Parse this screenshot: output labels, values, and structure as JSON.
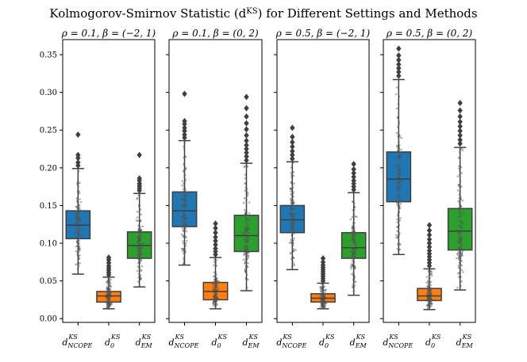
{
  "chart_data": {
    "type": "boxplot",
    "title": "Kolmogorov-Smirnov Statistic (d^KS) for Different Settings and Methods",
    "ylim": [
      -0.005,
      0.37
    ],
    "yticks": [
      0.0,
      0.05,
      0.1,
      0.15,
      0.2,
      0.25,
      0.3,
      0.35
    ],
    "ytick_labels": [
      "0.00",
      "0.05",
      "0.10",
      "0.15",
      "0.20",
      "0.25",
      "0.30",
      "0.35"
    ],
    "categories": [
      {
        "base": "d",
        "sub": "NCOPE",
        "sup": "KS"
      },
      {
        "base": "d",
        "sub": "0",
        "sup": "KS"
      },
      {
        "base": "d",
        "sub": "EM",
        "sup": "KS"
      }
    ],
    "colors": [
      "#1f77b4",
      "#ff7f0e",
      "#2ca02c"
    ],
    "panels": [
      {
        "subtitle": "ρ = 0.1, β = (−2, 1)",
        "boxes": [
          {
            "whisker_low": 0.059,
            "q1": 0.106,
            "median": 0.124,
            "q3": 0.143,
            "whisker_high": 0.199,
            "outliers": [
              0.203,
              0.207,
              0.213,
              0.217,
              0.244
            ]
          },
          {
            "whisker_low": 0.013,
            "q1": 0.022,
            "median": 0.03,
            "q3": 0.036,
            "whisker_high": 0.055,
            "outliers": [
              0.058,
              0.061,
              0.064,
              0.067,
              0.07,
              0.074,
              0.078,
              0.081
            ]
          },
          {
            "whisker_low": 0.042,
            "q1": 0.08,
            "median": 0.097,
            "q3": 0.115,
            "whisker_high": 0.166,
            "outliers": [
              0.17,
              0.173,
              0.176,
              0.179,
              0.183,
              0.186,
              0.217
            ]
          }
        ]
      },
      {
        "subtitle": "ρ = 0.1, β = (0, 2)",
        "boxes": [
          {
            "whisker_low": 0.071,
            "q1": 0.122,
            "median": 0.143,
            "q3": 0.168,
            "whisker_high": 0.236,
            "outliers": [
              0.24,
              0.244,
              0.249,
              0.253,
              0.258,
              0.262,
              0.298
            ]
          },
          {
            "whisker_low": 0.013,
            "q1": 0.025,
            "median": 0.036,
            "q3": 0.048,
            "whisker_high": 0.081,
            "outliers": [
              0.085,
              0.089,
              0.093,
              0.098,
              0.103,
              0.108,
              0.114,
              0.12,
              0.126
            ]
          },
          {
            "whisker_low": 0.037,
            "q1": 0.089,
            "median": 0.11,
            "q3": 0.137,
            "whisker_high": 0.206,
            "outliers": [
              0.21,
              0.215,
              0.22,
              0.225,
              0.23,
              0.236,
              0.243,
              0.251,
              0.259,
              0.268,
              0.279,
              0.294
            ]
          }
        ]
      },
      {
        "subtitle": "ρ = 0.5, β = (−2, 1)",
        "boxes": [
          {
            "whisker_low": 0.065,
            "q1": 0.114,
            "median": 0.131,
            "q3": 0.15,
            "whisker_high": 0.208,
            "outliers": [
              0.212,
              0.217,
              0.222,
              0.228,
              0.234,
              0.241,
              0.253
            ]
          },
          {
            "whisker_low": 0.013,
            "q1": 0.022,
            "median": 0.027,
            "q3": 0.033,
            "whisker_high": 0.047,
            "outliers": [
              0.05,
              0.053,
              0.056,
              0.059,
              0.062,
              0.065,
              0.068,
              0.071,
              0.075,
              0.08
            ]
          },
          {
            "whisker_low": 0.031,
            "q1": 0.08,
            "median": 0.094,
            "q3": 0.114,
            "whisker_high": 0.167,
            "outliers": [
              0.171,
              0.175,
              0.179,
              0.183,
              0.188,
              0.193,
              0.198,
              0.205
            ]
          }
        ]
      },
      {
        "subtitle": "ρ = 0.5, β = (0, 2)",
        "boxes": [
          {
            "whisker_low": 0.085,
            "q1": 0.155,
            "median": 0.185,
            "q3": 0.221,
            "whisker_high": 0.317,
            "outliers": [
              0.322,
              0.327,
              0.332,
              0.337,
              0.343,
              0.349,
              0.358
            ]
          },
          {
            "whisker_low": 0.012,
            "q1": 0.024,
            "median": 0.03,
            "q3": 0.04,
            "whisker_high": 0.066,
            "outliers": [
              0.07,
              0.074,
              0.078,
              0.082,
              0.086,
              0.09,
              0.095,
              0.1,
              0.105,
              0.111,
              0.117,
              0.124
            ]
          },
          {
            "whisker_low": 0.038,
            "q1": 0.091,
            "median": 0.116,
            "q3": 0.146,
            "whisker_high": 0.227,
            "outliers": [
              0.232,
              0.237,
              0.243,
              0.249,
              0.255,
              0.261,
              0.268,
              0.276,
              0.286
            ]
          }
        ]
      }
    ]
  }
}
